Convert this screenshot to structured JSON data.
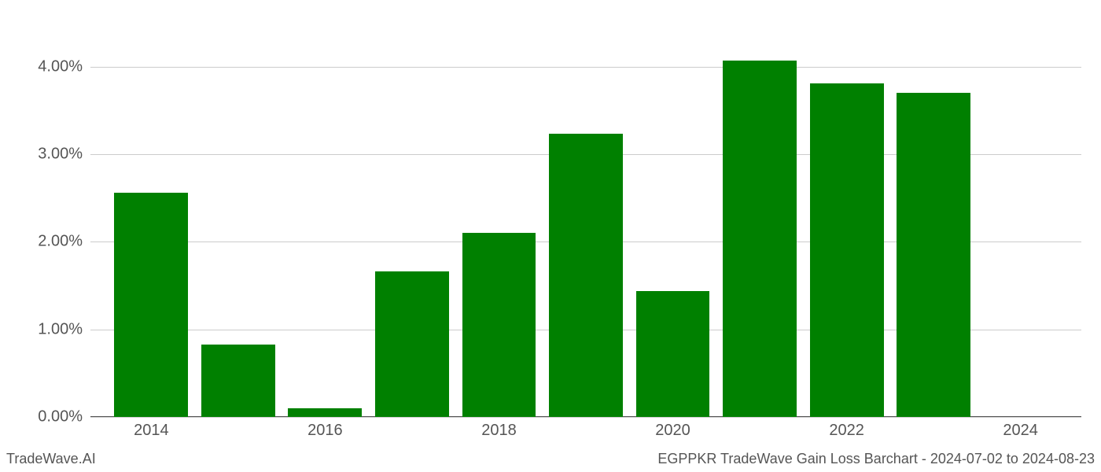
{
  "chart": {
    "type": "bar",
    "years": [
      2014,
      2015,
      2016,
      2017,
      2018,
      2019,
      2020,
      2021,
      2022,
      2023
    ],
    "values_pct": [
      2.56,
      0.83,
      0.1,
      1.66,
      2.1,
      3.23,
      1.44,
      4.07,
      3.81,
      3.7
    ],
    "bar_color": "#008000",
    "grid_color": "#cccccc",
    "background_color": "#ffffff",
    "y_ticks": [
      0,
      1,
      2,
      3,
      4
    ],
    "y_tick_labels": [
      "0.00%",
      "1.00%",
      "2.00%",
      "3.00%",
      "4.00%"
    ],
    "x_tick_years": [
      2014,
      2016,
      2018,
      2020,
      2022,
      2024
    ],
    "x_domain": [
      2013.3,
      2024.7
    ],
    "y_domain": [
      0,
      4.4
    ],
    "bar_width_years": 0.85,
    "axis_label_color": "#555555",
    "axis_fontsize": 20,
    "footer_fontsize": 18
  },
  "footer": {
    "left": "TradeWave.AI",
    "right": "EGPPKR TradeWave Gain Loss Barchart - 2024-07-02 to 2024-08-23"
  }
}
